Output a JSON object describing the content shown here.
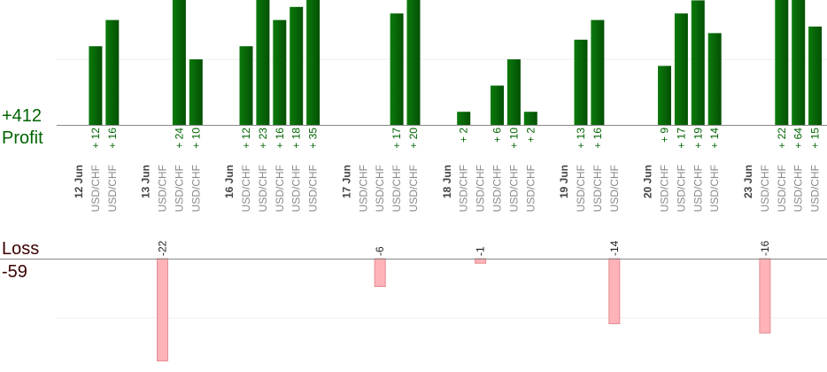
{
  "summary": {
    "profit_total": "+412",
    "profit_label": "Profit",
    "loss_label": "Loss",
    "loss_total": "-59"
  },
  "colors": {
    "profit_bar": "#0a6a0a",
    "profit_text": "#006400",
    "loss_bar": "#ffb3b8",
    "loss_bar_stroke": "#e58b92",
    "axis": "#888888",
    "gridline": "#eeeeee",
    "date_label": "#444444",
    "pair_label": "#888888"
  },
  "chart_data": {
    "type": "bar",
    "profit_ylim": [
      0,
      19
    ],
    "loss_ylim": [
      0,
      22
    ],
    "columns": [
      {
        "kind": "date",
        "label": "12 Jun"
      },
      {
        "kind": "trade",
        "label": "USD/CHF",
        "profit": 12
      },
      {
        "kind": "trade",
        "label": "USD/CHF",
        "profit": 16
      },
      {
        "kind": "gap"
      },
      {
        "kind": "date",
        "label": "13 Jun"
      },
      {
        "kind": "trade",
        "label": "USD/CHF",
        "loss": -22
      },
      {
        "kind": "trade",
        "label": "USD/CHF",
        "profit": 24
      },
      {
        "kind": "trade",
        "label": "USD/CHF",
        "profit": 10
      },
      {
        "kind": "gap"
      },
      {
        "kind": "date",
        "label": "16 Jun"
      },
      {
        "kind": "trade",
        "label": "USD/CHF",
        "profit": 12
      },
      {
        "kind": "trade",
        "label": "USD/CHF",
        "profit": 23
      },
      {
        "kind": "trade",
        "label": "USD/CHF",
        "profit": 16
      },
      {
        "kind": "trade",
        "label": "USD/CHF",
        "profit": 18
      },
      {
        "kind": "trade",
        "label": "USD/CHF",
        "profit": 35
      },
      {
        "kind": "gap"
      },
      {
        "kind": "date",
        "label": "17 Jun"
      },
      {
        "kind": "trade",
        "label": "USD/CHF"
      },
      {
        "kind": "trade",
        "label": "USD/CHF",
        "loss": -6
      },
      {
        "kind": "trade",
        "label": "USD/CHF",
        "profit": 17
      },
      {
        "kind": "trade",
        "label": "USD/CHF",
        "profit": 20
      },
      {
        "kind": "gap"
      },
      {
        "kind": "date",
        "label": "18 Jun"
      },
      {
        "kind": "trade",
        "label": "USD/CHF",
        "profit": 2
      },
      {
        "kind": "trade",
        "label": "USD/CHF",
        "loss": -1
      },
      {
        "kind": "trade",
        "label": "USD/CHF",
        "profit": 6
      },
      {
        "kind": "trade",
        "label": "USD/CHF",
        "profit": 10
      },
      {
        "kind": "trade",
        "label": "USD/CHF",
        "profit": 2
      },
      {
        "kind": "gap"
      },
      {
        "kind": "date",
        "label": "19 Jun"
      },
      {
        "kind": "trade",
        "label": "USD/CHF",
        "profit": 13
      },
      {
        "kind": "trade",
        "label": "USD/CHF",
        "profit": 16
      },
      {
        "kind": "trade",
        "label": "USD/CHF",
        "loss": -14
      },
      {
        "kind": "gap"
      },
      {
        "kind": "date",
        "label": "20 Jun"
      },
      {
        "kind": "trade",
        "label": "USD/CHF",
        "profit": 9
      },
      {
        "kind": "trade",
        "label": "USD/CHF",
        "profit": 17
      },
      {
        "kind": "trade",
        "label": "USD/CHF",
        "profit": 19
      },
      {
        "kind": "trade",
        "label": "USD/CHF",
        "profit": 14
      },
      {
        "kind": "gap"
      },
      {
        "kind": "date",
        "label": "23 Jun"
      },
      {
        "kind": "trade",
        "label": "USD/CHF",
        "loss": -16
      },
      {
        "kind": "trade",
        "label": "USD/CHF",
        "profit": 22
      },
      {
        "kind": "trade",
        "label": "USD/CHF",
        "profit": 64
      },
      {
        "kind": "trade",
        "label": "USD/CHF",
        "profit": 15
      }
    ]
  }
}
